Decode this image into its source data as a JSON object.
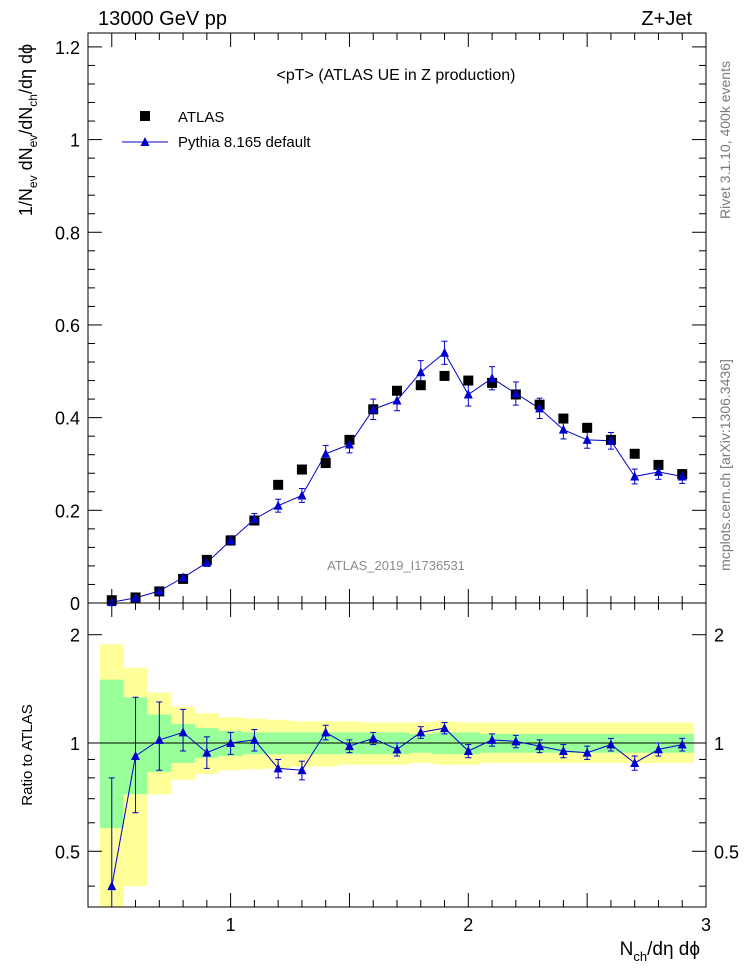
{
  "header": {
    "energy": "13000 GeV pp",
    "process": "Z+Jet"
  },
  "side_text": {
    "rivet": "Rivet 3.1.10,  400k events",
    "mcplots": "mcplots.cern.ch [arXiv:1306.3436]"
  },
  "colors": {
    "data": "#000000",
    "mc": "#0000cc",
    "band_stat": "#99ff99",
    "band_total": "#ffff99"
  },
  "chart_data": [
    {
      "type": "scatter",
      "title": "<pT>  (ATLAS UE in Z production)",
      "watermark": "ATLAS_2019_I1736531",
      "ylabel": "1/N_ev dN_ev/dN_ch/dη dϕ",
      "xlim": [
        0.4,
        3.0
      ],
      "ylim": [
        0,
        1.23
      ],
      "y_ticks": [
        0,
        0.2,
        0.4,
        0.6,
        0.8,
        1,
        1.2
      ],
      "y_tick_labels": [
        "0",
        "0.2",
        "0.4",
        "0.6",
        "0.8",
        "1",
        "1.2"
      ],
      "legend_position": "top-left",
      "series": [
        {
          "name": "ATLAS",
          "marker": "square",
          "x": [
            0.5,
            0.6,
            0.7,
            0.8,
            0.9,
            1.0,
            1.1,
            1.2,
            1.3,
            1.4,
            1.5,
            1.6,
            1.7,
            1.8,
            1.9,
            2.0,
            2.1,
            2.2,
            2.3,
            2.4,
            2.5,
            2.6,
            2.7,
            2.8,
            2.9
          ],
          "y": [
            0.006,
            0.012,
            0.025,
            0.052,
            0.093,
            0.135,
            0.178,
            0.255,
            0.288,
            0.302,
            0.352,
            0.418,
            0.458,
            0.47,
            0.49,
            0.48,
            0.475,
            0.45,
            0.428,
            0.398,
            0.378,
            0.352,
            0.322,
            0.298,
            0.278
          ]
        },
        {
          "name": "Pythia 8.165 default",
          "marker": "triangle",
          "x": [
            0.5,
            0.6,
            0.7,
            0.8,
            0.9,
            1.0,
            1.1,
            1.2,
            1.3,
            1.4,
            1.5,
            1.6,
            1.7,
            1.8,
            1.9,
            2.0,
            2.1,
            2.2,
            2.3,
            2.4,
            2.5,
            2.6,
            2.7,
            2.8,
            2.9
          ],
          "y": [
            0.002,
            0.011,
            0.026,
            0.055,
            0.087,
            0.135,
            0.181,
            0.21,
            0.232,
            0.322,
            0.342,
            0.418,
            0.437,
            0.498,
            0.54,
            0.45,
            0.485,
            0.452,
            0.42,
            0.374,
            0.352,
            0.35,
            0.273,
            0.283,
            0.273
          ],
          "err": [
            0.002,
            0.004,
            0.005,
            0.006,
            0.008,
            0.01,
            0.012,
            0.014,
            0.015,
            0.018,
            0.018,
            0.022,
            0.022,
            0.025,
            0.025,
            0.025,
            0.025,
            0.025,
            0.022,
            0.02,
            0.018,
            0.018,
            0.016,
            0.016,
            0.015
          ]
        }
      ]
    },
    {
      "type": "scatter",
      "ylabel": "Ratio to ATLAS",
      "xlabel": "N_ch/dη dϕ",
      "xlim": [
        0.4,
        3.0
      ],
      "ylim": [
        0.35,
        2.45
      ],
      "x_ticks": [
        1,
        2,
        3
      ],
      "x_tick_labels": [
        "1",
        "2",
        "3"
      ],
      "y_ticks": [
        0.5,
        1,
        2
      ],
      "y_tick_labels": [
        "0.5",
        "1",
        "2"
      ],
      "reference_line": 1,
      "band_total": {
        "lo": [
          0.3,
          0.4,
          0.72,
          0.79,
          0.82,
          0.84,
          0.845,
          0.85,
          0.86,
          0.86,
          0.87,
          0.87,
          0.87,
          0.88,
          0.87,
          0.87,
          0.88,
          0.88,
          0.88,
          0.88,
          0.88,
          0.88,
          0.88,
          0.88,
          0.88
        ],
        "hi": [
          1.88,
          1.62,
          1.38,
          1.26,
          1.21,
          1.18,
          1.17,
          1.16,
          1.15,
          1.15,
          1.15,
          1.14,
          1.14,
          1.14,
          1.15,
          1.14,
          1.14,
          1.14,
          1.14,
          1.14,
          1.14,
          1.14,
          1.14,
          1.14,
          1.14
        ]
      },
      "band_stat": {
        "lo": [
          0.58,
          0.72,
          0.83,
          0.88,
          0.91,
          0.92,
          0.93,
          0.93,
          0.93,
          0.93,
          0.93,
          0.93,
          0.93,
          0.94,
          0.93,
          0.93,
          0.94,
          0.94,
          0.94,
          0.94,
          0.94,
          0.94,
          0.94,
          0.94,
          0.94
        ],
        "hi": [
          1.5,
          1.34,
          1.2,
          1.13,
          1.1,
          1.08,
          1.07,
          1.07,
          1.07,
          1.07,
          1.07,
          1.07,
          1.07,
          1.06,
          1.07,
          1.07,
          1.06,
          1.06,
          1.06,
          1.06,
          1.06,
          1.06,
          1.06,
          1.06,
          1.06
        ]
      },
      "series": [
        {
          "name": "Pythia 8.165 default",
          "marker": "triangle",
          "x": [
            0.5,
            0.6,
            0.7,
            0.8,
            0.9,
            1.0,
            1.1,
            1.2,
            1.3,
            1.4,
            1.5,
            1.6,
            1.7,
            1.8,
            1.9,
            2.0,
            2.1,
            2.2,
            2.3,
            2.4,
            2.5,
            2.6,
            2.7,
            2.8,
            2.9
          ],
          "y": [
            0.4,
            0.92,
            1.02,
            1.07,
            0.94,
            1.0,
            1.02,
            0.85,
            0.84,
            1.07,
            0.98,
            1.03,
            0.96,
            1.07,
            1.1,
            0.95,
            1.02,
            1.01,
            0.98,
            0.95,
            0.94,
            0.99,
            0.88,
            0.96,
            0.99
          ],
          "err_lo": [
            0.2,
            0.28,
            0.18,
            0.12,
            0.09,
            0.07,
            0.07,
            0.05,
            0.05,
            0.05,
            0.04,
            0.04,
            0.04,
            0.04,
            0.04,
            0.04,
            0.04,
            0.04,
            0.04,
            0.04,
            0.04,
            0.04,
            0.04,
            0.04,
            0.04
          ],
          "err_hi": [
            0.4,
            0.42,
            0.28,
            0.17,
            0.1,
            0.07,
            0.07,
            0.05,
            0.05,
            0.05,
            0.04,
            0.04,
            0.04,
            0.04,
            0.04,
            0.04,
            0.04,
            0.04,
            0.04,
            0.04,
            0.04,
            0.04,
            0.04,
            0.04,
            0.04
          ]
        }
      ]
    }
  ]
}
